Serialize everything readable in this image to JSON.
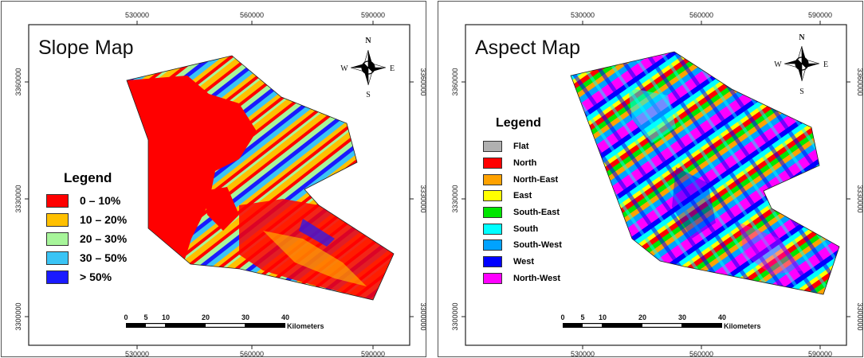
{
  "colors": {
    "slope": [
      "#ff0000",
      "#ffc000",
      "#a7f59a",
      "#3ac4f5",
      "#1a1aff"
    ],
    "aspect": [
      "#b0b0b0",
      "#ff0000",
      "#ffa200",
      "#ffff00",
      "#00e600",
      "#00ffff",
      "#00a2ff",
      "#0000ff",
      "#ff00ff"
    ]
  },
  "icons": {
    "compass": "north-arrow-compass-icon"
  },
  "panels": [
    {
      "id": "slope",
      "title": "Slope Map",
      "legend_title": "Legend",
      "legend": [
        {
          "label": "0 – 10%",
          "color": "#ff0000"
        },
        {
          "label": "10 – 20%",
          "color": "#ffc000"
        },
        {
          "label": "20 – 30%",
          "color": "#a7f59a"
        },
        {
          "label": "30 – 50%",
          "color": "#3ac4f5"
        },
        {
          "label": "> 50%",
          "color": "#1a1aff"
        }
      ],
      "x_ticks": [
        "530000",
        "560000",
        "590000"
      ],
      "y_ticks": [
        "3360000",
        "3330000",
        "3300000"
      ],
      "compass": {
        "n": "N",
        "s": "S",
        "e": "E",
        "w": "W"
      },
      "scalebar": {
        "labels": [
          "0",
          "5",
          "10",
          "20",
          "30",
          "40"
        ],
        "unit": "Kilometers"
      }
    },
    {
      "id": "aspect",
      "title": "Aspect Map",
      "legend_title": "Legend",
      "legend": [
        {
          "label": "Flat",
          "color": "#b0b0b0"
        },
        {
          "label": "North",
          "color": "#ff0000"
        },
        {
          "label": "North-East",
          "color": "#ffa200"
        },
        {
          "label": "East",
          "color": "#ffff00"
        },
        {
          "label": "South-East",
          "color": "#00e600"
        },
        {
          "label": "South",
          "color": "#00ffff"
        },
        {
          "label": "South-West",
          "color": "#00a2ff"
        },
        {
          "label": "West",
          "color": "#0000ff"
        },
        {
          "label": "North-West",
          "color": "#ff00ff"
        }
      ],
      "x_ticks": [
        "530000",
        "560000",
        "590000"
      ],
      "y_ticks": [
        "3360000",
        "3330000",
        "3300000"
      ],
      "compass": {
        "n": "N",
        "s": "S",
        "e": "E",
        "w": "W"
      },
      "scalebar": {
        "labels": [
          "0",
          "5",
          "10",
          "20",
          "30",
          "40"
        ],
        "unit": "Kilometers"
      }
    }
  ]
}
